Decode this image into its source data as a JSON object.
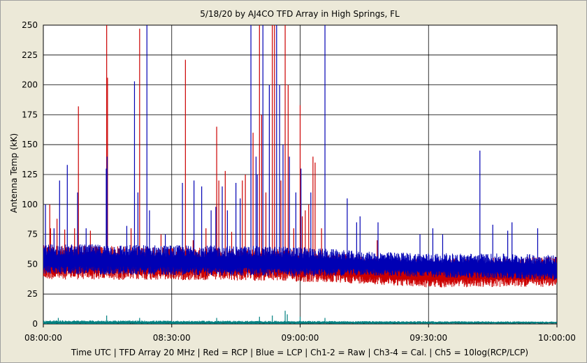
{
  "chart_data": {
    "type": "line",
    "title": "5/18/20  by  AJ4CO TFD Array  in  High Springs, FL",
    "xlabel": "Time UTC | TFD Array 20 MHz | Red = RCP | Blue = LCP | Ch1-2 = Raw | Ch3-4 = Cal. | Ch5 = 10log(RCP/LCP)",
    "ylabel": "Antenna Temp (kK)",
    "ylim": [
      0,
      250
    ],
    "yticks": [
      0,
      25,
      50,
      75,
      100,
      125,
      150,
      175,
      200,
      225,
      250
    ],
    "xlim_minutes": [
      0,
      120
    ],
    "xticks": [
      {
        "minute": 0,
        "label": "08:00:00"
      },
      {
        "minute": 30,
        "label": "08:30:00"
      },
      {
        "minute": 60,
        "label": "09:00:00"
      },
      {
        "minute": 90,
        "label": "09:30:00"
      },
      {
        "minute": 120,
        "label": "10:00:00"
      }
    ],
    "grid": true,
    "series": [
      {
        "name": "RCP",
        "color": "#cc0000",
        "baseline": [
          [
            0,
            50
          ],
          [
            30,
            49
          ],
          [
            55,
            48
          ],
          [
            70,
            45
          ],
          [
            90,
            41
          ],
          [
            110,
            42
          ],
          [
            120,
            42
          ]
        ],
        "noise_band": [
          [
            0,
            16
          ],
          [
            60,
            15
          ],
          [
            75,
            13
          ],
          [
            120,
            14
          ]
        ],
        "spikes": [
          [
            1.5,
            100
          ],
          [
            1.7,
            80
          ],
          [
            3.2,
            88
          ],
          [
            5.0,
            79
          ],
          [
            7.3,
            80
          ],
          [
            8.2,
            182
          ],
          [
            11.0,
            78
          ],
          [
            14.8,
            250
          ],
          [
            15.0,
            206
          ],
          [
            20.5,
            80
          ],
          [
            22.5,
            247
          ],
          [
            27.5,
            75
          ],
          [
            33.2,
            221
          ],
          [
            35.0,
            70
          ],
          [
            38.0,
            80
          ],
          [
            40.5,
            165
          ],
          [
            41.0,
            120
          ],
          [
            42.5,
            128
          ],
          [
            44.0,
            77
          ],
          [
            46.5,
            120
          ],
          [
            47.2,
            125
          ],
          [
            49.0,
            160
          ],
          [
            50.5,
            250
          ],
          [
            51.0,
            175
          ],
          [
            52.0,
            110
          ],
          [
            53.5,
            250
          ],
          [
            54.0,
            250
          ],
          [
            55.5,
            120
          ],
          [
            56.5,
            250
          ],
          [
            57.2,
            200
          ],
          [
            58.5,
            80
          ],
          [
            60.0,
            183
          ],
          [
            60.5,
            90
          ],
          [
            61.2,
            95
          ],
          [
            62.0,
            100
          ],
          [
            63.0,
            140
          ],
          [
            63.5,
            135
          ],
          [
            65.0,
            80
          ],
          [
            78.0,
            70
          ]
        ]
      },
      {
        "name": "LCP",
        "color": "#0000b4",
        "baseline": [
          [
            0,
            53
          ],
          [
            30,
            52
          ],
          [
            55,
            51
          ],
          [
            70,
            50
          ],
          [
            90,
            48
          ],
          [
            110,
            47
          ],
          [
            120,
            46
          ]
        ],
        "noise_band": [
          [
            0,
            14
          ],
          [
            60,
            14
          ],
          [
            75,
            11
          ],
          [
            120,
            12
          ]
        ],
        "spikes": [
          [
            0.5,
            100
          ],
          [
            2.5,
            80
          ],
          [
            3.8,
            120
          ],
          [
            5.6,
            133
          ],
          [
            8.0,
            110
          ],
          [
            10.0,
            80
          ],
          [
            14.7,
            130
          ],
          [
            14.9,
            140
          ],
          [
            19.5,
            82
          ],
          [
            21.3,
            203
          ],
          [
            22.1,
            110
          ],
          [
            24.2,
            250
          ],
          [
            24.8,
            95
          ],
          [
            28.5,
            75
          ],
          [
            32.5,
            118
          ],
          [
            35.2,
            120
          ],
          [
            37.0,
            115
          ],
          [
            39.2,
            95
          ],
          [
            40.3,
            98
          ],
          [
            41.8,
            115
          ],
          [
            43.0,
            95
          ],
          [
            45.0,
            118
          ],
          [
            46.0,
            105
          ],
          [
            48.5,
            250
          ],
          [
            49.7,
            140
          ],
          [
            50.0,
            125
          ],
          [
            51.3,
            250
          ],
          [
            52.8,
            200
          ],
          [
            54.5,
            250
          ],
          [
            55.2,
            200
          ],
          [
            56.0,
            150
          ],
          [
            57.5,
            140
          ],
          [
            59.0,
            110
          ],
          [
            60.2,
            130
          ],
          [
            62.5,
            110
          ],
          [
            65.8,
            250
          ],
          [
            71.0,
            105
          ],
          [
            73.2,
            85
          ],
          [
            74.0,
            90
          ],
          [
            78.2,
            85
          ],
          [
            88.0,
            75
          ],
          [
            91.0,
            80
          ],
          [
            93.3,
            75
          ],
          [
            102.0,
            145
          ],
          [
            105.0,
            83
          ],
          [
            108.5,
            78
          ],
          [
            109.5,
            85
          ],
          [
            115.5,
            80
          ]
        ]
      },
      {
        "name": "Ch5",
        "color": "#008080",
        "baseline": [
          [
            0,
            1
          ],
          [
            120,
            1
          ]
        ],
        "noise_band": [
          [
            0,
            2
          ],
          [
            120,
            1
          ]
        ],
        "spikes": [
          [
            3.5,
            5
          ],
          [
            14.8,
            7
          ],
          [
            22.5,
            5
          ],
          [
            40.5,
            5
          ],
          [
            50.5,
            6
          ],
          [
            53.5,
            7
          ],
          [
            56.5,
            11
          ],
          [
            57.0,
            8
          ],
          [
            60.0,
            6
          ],
          [
            65.8,
            5
          ]
        ]
      }
    ]
  }
}
